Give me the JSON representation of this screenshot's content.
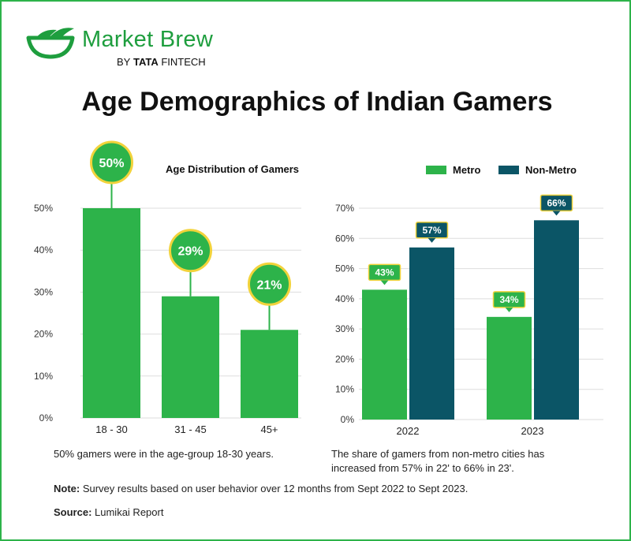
{
  "brand": {
    "name": "Market Brew",
    "by": "BY",
    "tata": "TATA",
    "fintech": "FINTECH"
  },
  "title": "Age Demographics of Indian Gamers",
  "colors": {
    "metro": "#2db34a",
    "non_metro": "#0b5566",
    "accent": "#f2d33b"
  },
  "chart_data": [
    {
      "type": "bar",
      "title": "Age Distribution of Gamers",
      "categories": [
        "18 - 30",
        "31 - 45",
        "45+"
      ],
      "values": [
        50,
        29,
        21
      ],
      "data_labels": [
        "50%",
        "29%",
        "21%"
      ],
      "ylim": [
        0,
        50
      ],
      "yticks": [
        "0%",
        "10%",
        "20%",
        "30%",
        "40%",
        "50%"
      ],
      "xlabel": "",
      "ylabel": "",
      "caption": "50% gamers were in the age-group 18-30 years."
    },
    {
      "type": "bar",
      "title": "",
      "categories": [
        "2022",
        "2023"
      ],
      "series": [
        {
          "name": "Metro",
          "values": [
            43,
            34
          ],
          "labels": [
            "43%",
            "34%"
          ]
        },
        {
          "name": "Non-Metro",
          "values": [
            57,
            66
          ],
          "labels": [
            "57%",
            "66%"
          ]
        }
      ],
      "ylim": [
        0,
        70
      ],
      "yticks": [
        "0%",
        "10%",
        "20%",
        "30%",
        "40%",
        "50%",
        "60%",
        "70%"
      ],
      "legend": "top-right",
      "caption_line1": "The share of gamers from non-metro cities has",
      "caption_line2": "increased from 57% in 22' to 66% in 23'."
    }
  ],
  "note": {
    "label": "Note:",
    "text": " Survey results based on user behavior over 12 months from Sept 2022 to Sept 2023."
  },
  "source": {
    "label": "Source:",
    "text": " Lumikai Report"
  }
}
